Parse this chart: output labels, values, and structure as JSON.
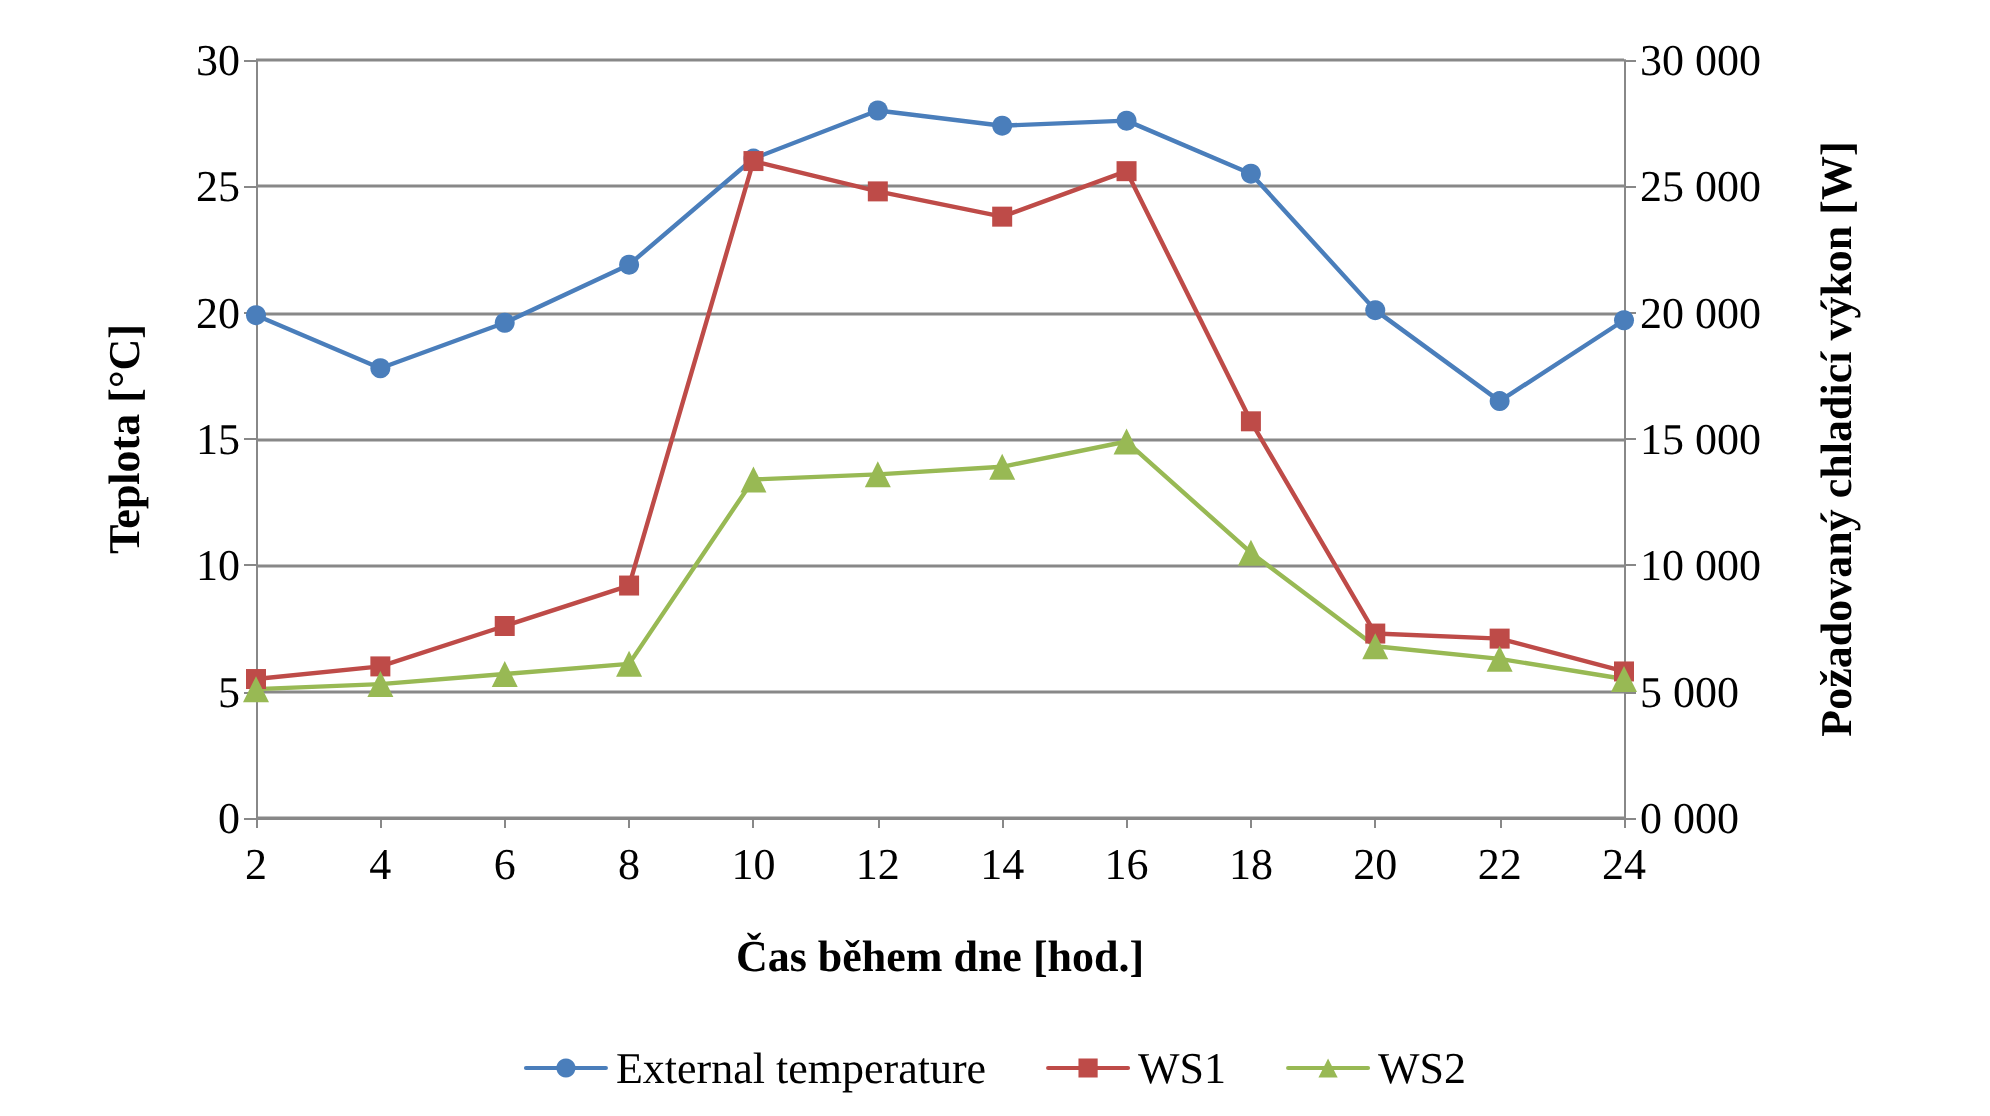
{
  "chart_data": {
    "type": "line",
    "xlabel": "Čas během dne [hod.]",
    "ylabel": "Teplota [°C]",
    "y2label": "Požadovaný chladicí výkon [W]",
    "x": [
      2,
      4,
      6,
      8,
      10,
      12,
      14,
      16,
      18,
      20,
      22,
      24
    ],
    "xlim": [
      2,
      24
    ],
    "xticks": [
      2,
      4,
      6,
      8,
      10,
      12,
      14,
      16,
      18,
      20,
      22,
      24
    ],
    "series": [
      {
        "name": "External temperature",
        "color": "#4a7ebb",
        "marker": "circle",
        "values": [
          19.9,
          17.8,
          19.6,
          21.9,
          26.1,
          28.0,
          27.4,
          27.6,
          25.5,
          20.1,
          16.5,
          19.7
        ]
      },
      {
        "name": "WS1",
        "color": "#be4b48",
        "marker": "square",
        "axis": "y2",
        "values": [
          5500,
          6000,
          7600,
          9200,
          26000,
          24800,
          23800,
          25600,
          15700,
          7300,
          7100,
          5800
        ]
      },
      {
        "name": "WS2",
        "color": "#98b954",
        "marker": "triangle",
        "axis": "y2",
        "values": [
          5100,
          5300,
          5700,
          6100,
          13400,
          13600,
          13900,
          14900,
          10500,
          6800,
          6300,
          5500
        ]
      }
    ],
    "ylim": [
      0,
      30
    ],
    "yticks": [
      0,
      5,
      10,
      15,
      20,
      25,
      30
    ],
    "y2lim": [
      0,
      30000
    ],
    "y2ticks": [
      {
        "value": 0,
        "label": "0 000"
      },
      {
        "value": 5000,
        "label": "5 000"
      },
      {
        "value": 10000,
        "label": "10 000"
      },
      {
        "value": 15000,
        "label": "15 000"
      },
      {
        "value": 20000,
        "label": "20 000"
      },
      {
        "value": 25000,
        "label": "25 000"
      },
      {
        "value": 30000,
        "label": "30 000"
      }
    ],
    "grid": "y",
    "legend": "bottom",
    "line_style": "solid"
  }
}
